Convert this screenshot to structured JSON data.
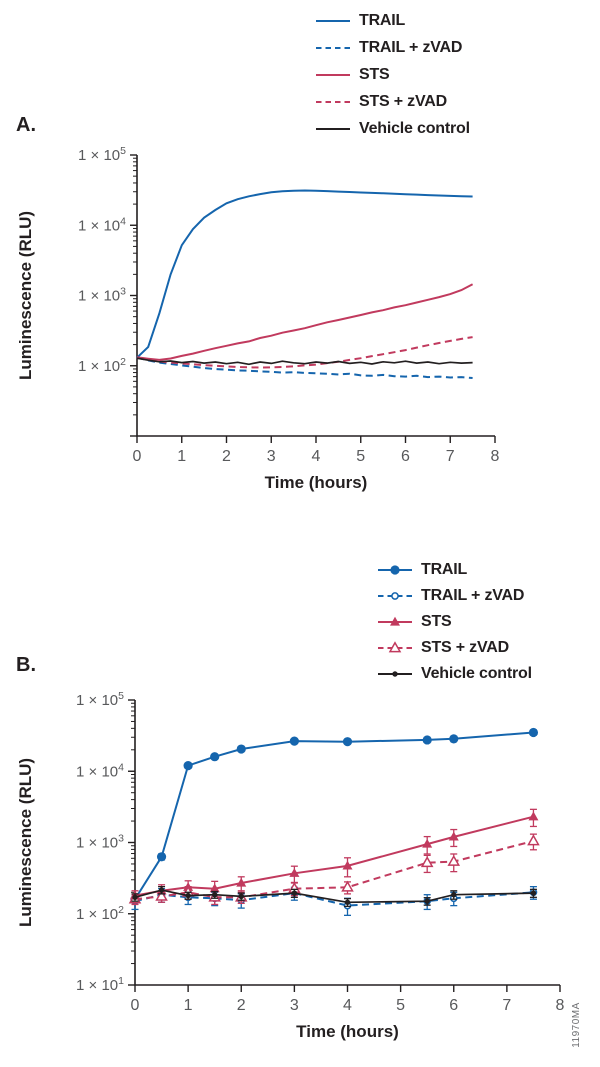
{
  "panels": {
    "a": {
      "label": "A."
    },
    "b": {
      "label": "B."
    }
  },
  "watermark": "11970MA",
  "colors": {
    "trail_blue": "#1565ad",
    "sts_red": "#c13a5e",
    "black": "#231f20",
    "tick_gray": "#58595b"
  },
  "legend_a": {
    "items": [
      {
        "label": "TRAIL",
        "color": "#1565ad",
        "dash": "solid",
        "marker": "none"
      },
      {
        "label": "TRAIL + zVAD",
        "color": "#1565ad",
        "dash": "dashed",
        "marker": "none"
      },
      {
        "label": "STS",
        "color": "#c13a5e",
        "dash": "solid",
        "marker": "none"
      },
      {
        "label": "STS + zVAD",
        "color": "#c13a5e",
        "dash": "dashed",
        "marker": "none"
      },
      {
        "label": "Vehicle control",
        "color": "#231f20",
        "dash": "solid",
        "marker": "none"
      }
    ]
  },
  "legend_b": {
    "items": [
      {
        "label": "TRAIL",
        "color": "#1565ad",
        "dash": "solid",
        "marker": "circle-filled"
      },
      {
        "label": "TRAIL + zVAD",
        "color": "#1565ad",
        "dash": "dashed",
        "marker": "circle-open"
      },
      {
        "label": "STS",
        "color": "#c13a5e",
        "dash": "solid",
        "marker": "triangle-filled"
      },
      {
        "label": "STS + zVAD",
        "color": "#c13a5e",
        "dash": "dashed",
        "marker": "triangle-open"
      },
      {
        "label": "Vehicle control",
        "color": "#231f20",
        "dash": "solid",
        "marker": "dot"
      }
    ]
  },
  "chart_data": [
    {
      "id": "A",
      "type": "line",
      "title": "",
      "xlabel": "Time (hours)",
      "ylabel": "Luminescence (RLU)",
      "xlim": [
        0,
        8
      ],
      "x_ticks": [
        0,
        1,
        2,
        3,
        4,
        5,
        6,
        7,
        8
      ],
      "yscale": "log",
      "ylim": [
        10,
        100000
      ],
      "grid": false,
      "y_ticks": [
        {
          "base": "1 × 10",
          "exp": "5"
        },
        {
          "base": "1 × 10",
          "exp": "4"
        },
        {
          "base": "1 × 10",
          "exp": "3"
        },
        {
          "base": "1 × 10",
          "exp": "2"
        }
      ],
      "x": [
        0,
        0.25,
        0.5,
        0.75,
        1,
        1.25,
        1.5,
        1.75,
        2,
        2.25,
        2.5,
        2.75,
        3,
        3.25,
        3.5,
        3.75,
        4,
        4.25,
        4.5,
        4.75,
        5,
        5.25,
        5.5,
        5.75,
        6,
        6.25,
        6.5,
        6.75,
        7,
        7.25,
        7.5
      ],
      "series": [
        {
          "name": "TRAIL",
          "color": "#1565ad",
          "dash": "solid",
          "marker": "none",
          "values": [
            130,
            185,
            560,
            2000,
            5200,
            8800,
            12800,
            16500,
            20500,
            23500,
            25800,
            27800,
            29400,
            30400,
            31000,
            31200,
            31000,
            30600,
            30100,
            29700,
            29300,
            28900,
            28500,
            28100,
            27700,
            27300,
            26900,
            26500,
            26200,
            25900,
            25700
          ]
        },
        {
          "name": "TRAIL + zVAD",
          "color": "#1565ad",
          "dash": "dashed",
          "marker": "none",
          "values": [
            131,
            119,
            111,
            106,
            101,
            97,
            93,
            90,
            88,
            86,
            85,
            83,
            82,
            80,
            81,
            79,
            78,
            77,
            75,
            77,
            73,
            72,
            74,
            71,
            70,
            72,
            69,
            70,
            68,
            69,
            67
          ]
        },
        {
          "name": "STS",
          "color": "#c13a5e",
          "dash": "solid",
          "marker": "none",
          "values": [
            132,
            126,
            121,
            127,
            138,
            149,
            163,
            178,
            192,
            208,
            222,
            248,
            268,
            295,
            318,
            342,
            378,
            415,
            448,
            487,
            528,
            575,
            618,
            676,
            728,
            795,
            868,
            948,
            1048,
            1195,
            1450
          ]
        },
        {
          "name": "STS + zVAD",
          "color": "#c13a5e",
          "dash": "dashed",
          "marker": "none",
          "values": [
            129,
            121,
            115,
            111,
            108,
            105,
            102,
            100,
            98,
            96,
            95,
            94,
            95,
            96,
            98,
            101,
            104,
            109,
            114,
            121,
            128,
            137,
            146,
            156,
            167,
            181,
            196,
            211,
            226,
            241,
            256
          ]
        },
        {
          "name": "Vehicle control",
          "color": "#231f20",
          "dash": "solid",
          "marker": "none",
          "values": [
            128,
            120,
            114,
            117,
            111,
            115,
            109,
            113,
            107,
            112,
            105,
            113,
            108,
            116,
            110,
            107,
            113,
            109,
            115,
            108,
            112,
            106,
            114,
            110,
            116,
            109,
            113,
            107,
            112,
            109,
            111
          ]
        }
      ]
    },
    {
      "id": "B",
      "type": "line",
      "title": "",
      "xlabel": "Time (hours)",
      "ylabel": "Luminescence (RLU)",
      "xlim": [
        0,
        8
      ],
      "x_ticks": [
        0,
        1,
        2,
        3,
        4,
        5,
        6,
        7,
        8
      ],
      "yscale": "log",
      "ylim": [
        10,
        100000
      ],
      "grid": false,
      "y_ticks": [
        {
          "base": "1 × 10",
          "exp": "5"
        },
        {
          "base": "1 × 10",
          "exp": "4"
        },
        {
          "base": "1 × 10",
          "exp": "3"
        },
        {
          "base": "1 × 10",
          "exp": "2"
        },
        {
          "base": "1 × 10",
          "exp": "1"
        }
      ],
      "x": [
        0,
        0.5,
        1,
        1.5,
        2,
        3,
        4,
        5.5,
        6,
        7.5
      ],
      "series": [
        {
          "name": "TRAIL",
          "color": "#1565ad",
          "dash": "solid",
          "marker": "circle-filled",
          "values": [
            160,
            630,
            12000,
            16000,
            20500,
            26500,
            26000,
            27500,
            28500,
            35000
          ],
          "errors": [
            15,
            60,
            900,
            1100,
            1300,
            1600,
            1500,
            1600,
            1700,
            2500
          ]
        },
        {
          "name": "TRAIL + zVAD",
          "color": "#1565ad",
          "dash": "dashed",
          "marker": "circle-open",
          "values": [
            150,
            185,
            170,
            165,
            155,
            195,
            130,
            150,
            165,
            200
          ],
          "errors": [
            35,
            40,
            35,
            35,
            35,
            40,
            35,
            35,
            35,
            40
          ]
        },
        {
          "name": "STS",
          "color": "#c13a5e",
          "dash": "solid",
          "marker": "triangle-filled",
          "values": [
            180,
            210,
            235,
            225,
            270,
            370,
            470,
            950,
            1200,
            2300
          ],
          "errors": [
            30,
            45,
            55,
            60,
            60,
            95,
            140,
            260,
            320,
            620
          ]
        },
        {
          "name": "STS + zVAD",
          "color": "#c13a5e",
          "dash": "dashed",
          "marker": "triangle-open",
          "values": [
            160,
            175,
            200,
            170,
            170,
            225,
            235,
            520,
            540,
            1050
          ],
          "errors": [
            25,
            30,
            40,
            35,
            30,
            45,
            45,
            140,
            150,
            260
          ]
        },
        {
          "name": "Vehicle control",
          "color": "#231f20",
          "dash": "solid",
          "marker": "dot",
          "values": [
            170,
            215,
            180,
            185,
            175,
            195,
            145,
            150,
            185,
            195
          ],
          "errors": [
            20,
            25,
            20,
            20,
            20,
            25,
            18,
            18,
            25,
            25
          ]
        }
      ]
    }
  ]
}
